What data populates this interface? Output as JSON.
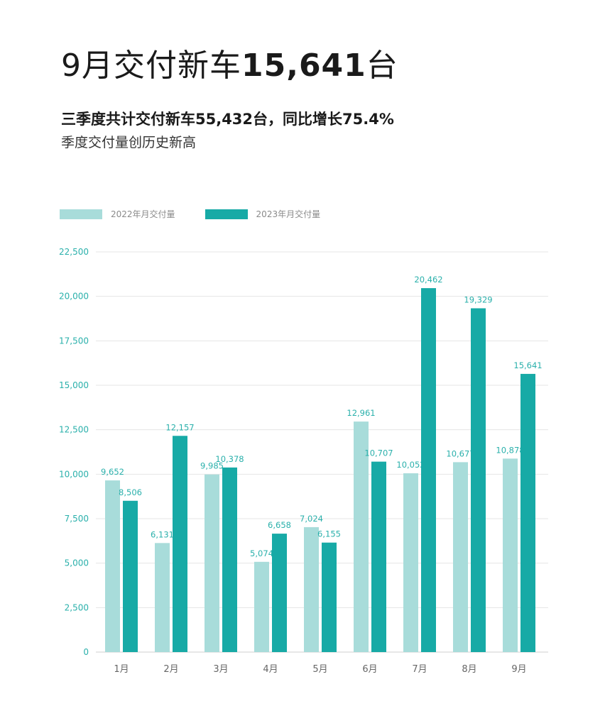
{
  "header": {
    "title_prefix": "9月交付新车",
    "title_number": "15,641",
    "title_suffix": "台",
    "subtitle": "三季度共计交付新车55,432台，同比增长75.4%",
    "subtitle2": "季度交付量创历史新高"
  },
  "legend": {
    "items": [
      {
        "label": "2022年月交付量",
        "color": "#a8dcda"
      },
      {
        "label": "2023年月交付量",
        "color": "#17aaa6"
      }
    ]
  },
  "chart_data": {
    "type": "bar",
    "categories": [
      "1月",
      "2月",
      "3月",
      "4月",
      "5月",
      "6月",
      "7月",
      "8月",
      "9月"
    ],
    "series": [
      {
        "name": "2022年月交付量",
        "color": "#a8dcda",
        "values": [
          9652,
          6131,
          9985,
          5074,
          7024,
          12961,
          10052,
          10677,
          10878
        ],
        "labels": [
          "9,652",
          "6,131",
          "9,985",
          "5,074",
          "7,024",
          "12,961",
          "10,052",
          "10,677",
          "10,878"
        ]
      },
      {
        "name": "2023年月交付量",
        "color": "#17aaa6",
        "values": [
          8506,
          12157,
          10378,
          6658,
          6155,
          10707,
          20462,
          19329,
          15641
        ],
        "labels": [
          "8,506",
          "12,157",
          "10,378",
          "6,658",
          "6,155",
          "10,707",
          "20,462",
          "19,329",
          "15,641"
        ]
      }
    ],
    "ylim": [
      0,
      22500
    ],
    "yticks": [
      0,
      2500,
      5000,
      7500,
      10000,
      12500,
      15000,
      17500,
      20000,
      22500
    ],
    "ytick_labels": [
      "0",
      "2,500",
      "5,000",
      "7,500",
      "10,000",
      "12,500",
      "15,000",
      "17,500",
      "20,000",
      "22,500"
    ],
    "grid": true,
    "legend_position": "top-left"
  }
}
